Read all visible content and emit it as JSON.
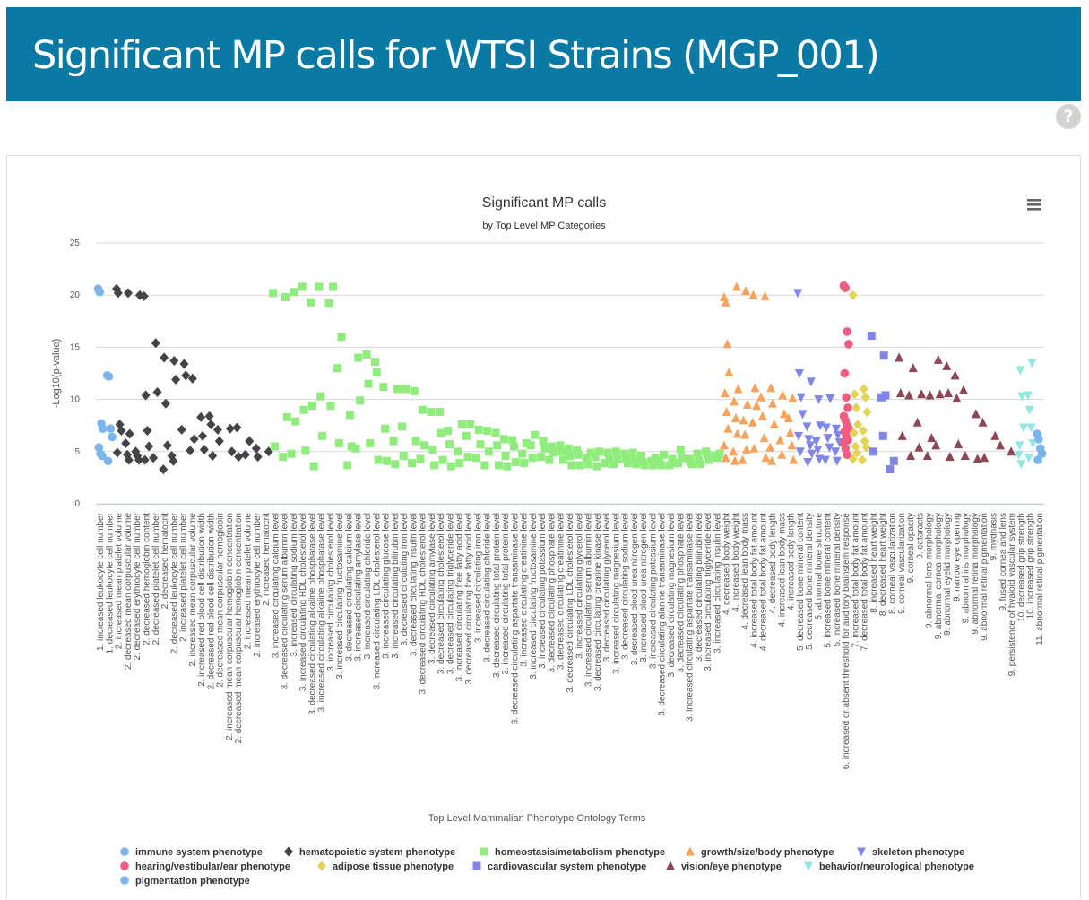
{
  "page": {
    "title": "Significant MP calls for WTSI Strains (MGP_001)",
    "help_icon": "question-circle-icon"
  },
  "chart_data": {
    "type": "scatter",
    "title": "Significant MP calls",
    "subtitle": "by Top Level MP Categories",
    "xlabel": "Top Level Mammalian Phenotype Ontology Terms",
    "ylabel": "-Log10(p-value)",
    "ylim": [
      0,
      25
    ],
    "yticks": [
      0,
      5,
      10,
      15,
      20,
      25
    ],
    "grid": true,
    "legend_position": "bottom",
    "menu_icon": "hamburger-menu-icon",
    "categories": [
      "1. increased leukocyte cell number",
      "1. decreased leukocyte cell number",
      "2. increased mean platelet volume",
      "2. decreased mean corpuscular volume",
      "2. decreased erythrocyte cell number",
      "2. decreased hemoglobin content",
      "2. decreased platelet cell number",
      "2. decreased hematocrit",
      "2. decreased leukocyte cell number",
      "2. increased platelet cell number",
      "2. increased mean corpuscular volume",
      "2. increased red blood cell distribution width",
      "2. decreased red blood cell distribution width",
      "2. decreased mean corpuscular hemoglobin",
      "2. increased mean corpuscular hemoglobin concentration",
      "2. decreased mean corpuscular hemoglobin concentration",
      "2. increased mean platelet volume",
      "2. increased erythrocyte cell number",
      "2. increased hematocrit",
      "3. increased circulating calcium level",
      "3. decreased circulating serum albumin level",
      "3. increased circulating sodium level",
      "3. increased circulating HDL cholesterol level",
      "3. decreased circulating alkaline phosphatase level",
      "3. increased circulating alkaline phosphatase level",
      "3. increased circulating cholesterol level",
      "3. increased circulating fructosamine level",
      "3. decreased circulating calcium level",
      "3. increased circulating amylase level",
      "3. increased circulating chloride level",
      "3. increased circulating LDL cholesterol level",
      "3. increased circulating glucose level",
      "3. increased circulating bilirubin level",
      "3. decreased circulating iron level",
      "3. decreased circulating insulin level",
      "3. decreased circulating HDL cholesterol level",
      "3. decreased circulating amylase level",
      "3. decreased circulating cholesterol level",
      "3. decreased circulating triglyceride level",
      "3. increased circulating free fatty acid level",
      "3. decreased circulating free fatty acid level",
      "3. increased circulating iron level",
      "3. decreased circulating chloride level",
      "3. decreased circulating total protein level",
      "3. increased circulating total protein level",
      "3. decreased circulating aspartate transaminase level",
      "3. increased circulating creatinine level",
      "3. increased circulating fructosamine level",
      "3. increased circulating potassium level",
      "3. decreased circulating phosphate level",
      "3. decreased circulating creatinine level",
      "3. decreased circulating LDL cholesterol level",
      "3. increased circulating glycerol level",
      "3. increased circulating serum albumin level",
      "3. decreased circulating creatine kinase level",
      "3. decreased circulating glycerol level",
      "3. increased circulating magnesium level",
      "3. decreased circulating sodium level",
      "3. decreased blood urea nitrogen level",
      "3. increased blood urea nitrogen level",
      "3. increased circulating potassium level",
      "3. decreased circulating alanine transaminase level",
      "3. decreased circulating magnesium level",
      "3. decreased circulating phosphate level",
      "3. increased circulating aspartate transaminase level",
      "3. decreased circulating bilirubin level",
      "3. increased circulating triglyceride level",
      "3. increased circulating insulin level",
      "4. decreased body weight",
      "4. increased body weight",
      "4. decreased lean body mass",
      "4. increased total body fat amount",
      "4. decreased total body fat amount",
      "4. decreased body length",
      "4. increased lean body mass",
      "4. increased body length",
      "5. decreased bone mineral content",
      "5. decreased bone mineral density",
      "5. abnormal bone structure",
      "5. increased bone mineral content",
      "5. increased bone mineral density",
      "6. increased or absent threshold for auditory brainstem response",
      "7. increased total body fat amount",
      "7. decreased total body fat amount",
      "8. increased heart weight",
      "8. decreased heart weight",
      "8. corneal vascularization",
      "9. corneal vascularization",
      "9. corneal opacity",
      "9. cataracts",
      "9. abnormal lens morphology",
      "9. abnormal cornea morphology",
      "9. abnormal eyelid morphology",
      "9. narrow eye opening",
      "9. abnormal iris morphology",
      "9. abnormal retina morphology",
      "9. abnormal retinal pigmentation",
      "9. mydriasis",
      "9. fused cornea and lens",
      "9. persistence of hyaloid vascular system",
      "10. decreased grip strength",
      "10. increased grip strength",
      "11. abnormal retinal pigmentation"
    ],
    "series": [
      {
        "name": "immune system phenotype",
        "color": "#7cb5ec",
        "symbol": "circle",
        "x": [
          0,
          0,
          0,
          0,
          0,
          0,
          0,
          1,
          1,
          1,
          1,
          1
        ],
        "y": [
          20.6,
          20.3,
          7.7,
          7.2,
          5.4,
          4.8,
          4.6,
          12.3,
          12.2,
          7.2,
          6.4,
          4.1
        ]
      },
      {
        "name": "hematopoietic system phenotype",
        "color": "#434348",
        "symbol": "diamond",
        "x": [
          2,
          2,
          2,
          2,
          2,
          3,
          3,
          3,
          3,
          3,
          4,
          4,
          4,
          4,
          5,
          5,
          5,
          5,
          5,
          6,
          6,
          6,
          7,
          7,
          7,
          7,
          8,
          8,
          8,
          8,
          9,
          9,
          9,
          10,
          10,
          10,
          11,
          11,
          11,
          12,
          12,
          12,
          13,
          13,
          14,
          14,
          15,
          15,
          16,
          16,
          17,
          17,
          18
        ],
        "y": [
          20.6,
          20.2,
          7.6,
          7.0,
          4.9,
          20.2,
          6.7,
          5.8,
          4.7,
          4.2,
          20.0,
          5.0,
          4.6,
          4.2,
          19.9,
          10.4,
          7.0,
          5.5,
          4.2,
          15.4,
          10.7,
          4.4,
          14.0,
          9.6,
          5.6,
          3.3,
          13.7,
          11.9,
          4.6,
          4.1,
          13.4,
          12.3,
          7.1,
          12.0,
          6.2,
          5.1,
          8.3,
          6.5,
          5.2,
          8.4,
          7.6,
          4.6,
          7.1,
          6.0,
          7.2,
          5.0,
          7.3,
          4.5,
          6.0,
          4.7,
          5.3,
          4.5,
          5.0
        ]
      },
      {
        "name": "homeostasis/metabolism phenotype",
        "color": "#90ed7d",
        "symbol": "square",
        "x": [
          19,
          19,
          20,
          20,
          20,
          21,
          21,
          21,
          22,
          22,
          22,
          23,
          23,
          23,
          24,
          24,
          24,
          25,
          25,
          25,
          26,
          26,
          26,
          27,
          27,
          27,
          28,
          28,
          28,
          29,
          29,
          29,
          30,
          30,
          30,
          31,
          31,
          31,
          32,
          32,
          32,
          33,
          33,
          33,
          34,
          34,
          34,
          35,
          35,
          35,
          36,
          36,
          36,
          37,
          37,
          37,
          38,
          38,
          38,
          39,
          39,
          39,
          40,
          40,
          40,
          41,
          41,
          41,
          42,
          42,
          42,
          43,
          43,
          43,
          44,
          44,
          44,
          45,
          45,
          45,
          46,
          46,
          46,
          47,
          47,
          47,
          48,
          48,
          48,
          49,
          49,
          49,
          50,
          50,
          50,
          51,
          51,
          51,
          52,
          52,
          52,
          53,
          53,
          53,
          54,
          54,
          54,
          55,
          55,
          55,
          56,
          56,
          56,
          57,
          57,
          57,
          58,
          58,
          58,
          59,
          59,
          59,
          60,
          60,
          60,
          61,
          61,
          61,
          62,
          62,
          62,
          63,
          63,
          63,
          64,
          64,
          64,
          65,
          65,
          65,
          66,
          66,
          66,
          67,
          67,
          67
        ],
        "y": [
          20.2,
          5.5,
          19.8,
          8.3,
          4.5,
          20.3,
          7.9,
          4.8,
          20.8,
          9.0,
          5.1,
          19.3,
          9.4,
          3.6,
          20.8,
          10.3,
          6.5,
          20.8,
          19.2,
          9.4,
          16.0,
          13.0,
          5.8,
          8.5,
          5.5,
          3.7,
          14.0,
          9.9,
          5.3,
          14.3,
          11.5,
          5.8,
          13.6,
          12.6,
          4.2,
          11.2,
          7.2,
          4.1,
          11.0,
          6.0,
          3.8,
          11.0,
          7.4,
          4.6,
          10.8,
          6.0,
          3.9,
          9.0,
          5.6,
          4.3,
          8.8,
          5.2,
          3.7,
          8.8,
          6.8,
          4.2,
          7.0,
          5.7,
          3.6,
          7.6,
          5.0,
          3.9,
          7.6,
          6.5,
          4.5,
          7.1,
          5.7,
          4.4,
          7.0,
          5.0,
          3.7,
          6.8,
          5.6,
          3.7,
          6.2,
          4.6,
          3.6,
          6.1,
          5.5,
          4.0,
          5.8,
          4.8,
          3.9,
          6.6,
          5.6,
          4.4,
          6.0,
          5.3,
          4.5,
          5.5,
          4.9,
          4.2,
          5.6,
          5.0,
          4.2,
          5.3,
          4.6,
          3.7,
          5.1,
          4.7,
          3.7,
          4.9,
          4.4,
          3.8,
          5.0,
          4.5,
          3.6,
          4.9,
          4.3,
          3.9,
          5.0,
          4.3,
          3.8,
          4.8,
          4.3,
          3.9,
          4.9,
          4.2,
          3.8,
          4.6,
          4.0,
          3.7,
          4.4,
          4.1,
          3.7,
          4.7,
          4.0,
          3.7,
          4.3,
          3.9,
          3.7,
          5.2,
          4.4,
          3.9,
          4.3,
          4.0,
          3.8,
          4.8,
          4.1,
          3.8,
          5.0,
          4.7,
          4.2,
          4.8,
          4.6,
          4.4
        ]
      },
      {
        "name": "growth/size/body phenotype",
        "color": "#f7a35c",
        "symbol": "triangle",
        "x": [
          68,
          68,
          68,
          68,
          68,
          68,
          68,
          68,
          68,
          69,
          69,
          69,
          69,
          69,
          69,
          69,
          70,
          70,
          70,
          70,
          70,
          70,
          71,
          71,
          71,
          71,
          71,
          72,
          72,
          72,
          72,
          72,
          73,
          73,
          73,
          73,
          73,
          74,
          74,
          74,
          74,
          75,
          75,
          75,
          75,
          75
        ],
        "y": [
          19.8,
          19.3,
          15.3,
          12.6,
          10.6,
          8.8,
          7.2,
          5.6,
          4.4,
          20.8,
          11.0,
          9.8,
          8.2,
          6.7,
          5.0,
          4.1,
          20.4,
          9.5,
          8.0,
          6.6,
          5.2,
          4.2,
          20.0,
          11.1,
          9.4,
          7.8,
          5.3,
          19.9,
          10.2,
          8.4,
          6.3,
          4.4,
          11.1,
          9.6,
          7.6,
          5.4,
          4.1,
          10.4,
          8.6,
          6.1,
          4.7,
          10.1,
          8.2,
          6.8,
          5.6,
          4.2
        ]
      },
      {
        "name": "skeleton phenotype",
        "color": "#8085e9",
        "symbol": "triangle-down",
        "x": [
          76,
          76,
          76,
          76,
          76,
          76,
          77,
          77,
          77,
          77,
          77,
          77,
          78,
          78,
          78,
          78,
          78,
          79,
          79,
          79,
          79,
          79,
          80,
          80,
          80,
          80,
          80
        ],
        "y": [
          20.2,
          12.5,
          10.2,
          8.6,
          6.5,
          5.0,
          11.7,
          7.4,
          6.2,
          5.6,
          4.8,
          4.0,
          10.0,
          7.5,
          6.0,
          5.2,
          4.3,
          10.1,
          7.3,
          6.3,
          5.4,
          4.2,
          7.2,
          6.6,
          5.9,
          5.0,
          4.1
        ]
      },
      {
        "name": "hearing/vestibular/ear phenotype",
        "color": "#f15c80",
        "symbol": "circle",
        "x": [
          81,
          81,
          81,
          81,
          81,
          81,
          81,
          81,
          81,
          81,
          81,
          81,
          81,
          81,
          81,
          81,
          81
        ],
        "y": [
          20.9,
          20.7,
          16.5,
          15.3,
          12.5,
          10.2,
          9.2,
          8.4,
          8.0,
          7.5,
          7.2,
          6.9,
          6.5,
          6.1,
          5.8,
          5.3,
          4.7
        ]
      },
      {
        "name": "adipose tissue phenotype",
        "color": "#e4d354",
        "symbol": "diamond",
        "x": [
          82,
          82,
          82,
          82,
          82,
          82,
          82,
          82,
          83,
          83,
          83,
          83,
          83,
          83,
          83
        ],
        "y": [
          20.0,
          10.5,
          9.2,
          7.6,
          6.8,
          5.5,
          4.9,
          4.3,
          11.0,
          10.2,
          8.8,
          7.0,
          6.0,
          5.4,
          4.2
        ]
      },
      {
        "name": "cardiovascular system phenotype",
        "color": "#8085e8",
        "symbol": "square",
        "x": [
          84,
          84,
          85,
          85,
          85,
          85,
          86,
          86
        ],
        "y": [
          16.1,
          5.0,
          14.2,
          10.4,
          10.2,
          6.5,
          4.1,
          3.3
        ]
      },
      {
        "name": "vision/eye phenotype",
        "color": "#8d4653",
        "symbol": "triangle",
        "x": [
          87,
          87,
          87,
          88,
          88,
          88,
          89,
          89,
          89,
          90,
          90,
          90,
          91,
          91,
          91,
          92,
          92,
          92,
          93,
          93,
          93,
          94,
          94,
          95,
          95,
          96,
          96,
          97,
          98,
          99
        ],
        "y": [
          14.0,
          10.6,
          6.5,
          13.0,
          10.4,
          4.6,
          10.5,
          7.8,
          5.4,
          10.4,
          6.3,
          4.6,
          13.8,
          10.5,
          5.6,
          13.2,
          10.6,
          4.5,
          12.3,
          10.1,
          5.7,
          10.9,
          4.6,
          8.6,
          4.3,
          7.8,
          4.4,
          6.5,
          5.6,
          5.0
        ]
      },
      {
        "name": "behavior/neurological phenotype",
        "color": "#91e8e1",
        "symbol": "triangle-down",
        "x": [
          100,
          100,
          100,
          100,
          100,
          100,
          101,
          101,
          101,
          101,
          101,
          101
        ],
        "y": [
          4.7,
          12.8,
          10.3,
          7.3,
          5.6,
          3.8,
          13.5,
          10.4,
          9.0,
          7.3,
          5.8,
          4.4
        ]
      },
      {
        "name": "pigmentation phenotype",
        "color": "#7cb5ec",
        "symbol": "circle",
        "x": [
          102,
          102,
          102,
          102,
          102
        ],
        "y": [
          6.7,
          6.2,
          5.3,
          4.8,
          4.2
        ]
      }
    ]
  }
}
